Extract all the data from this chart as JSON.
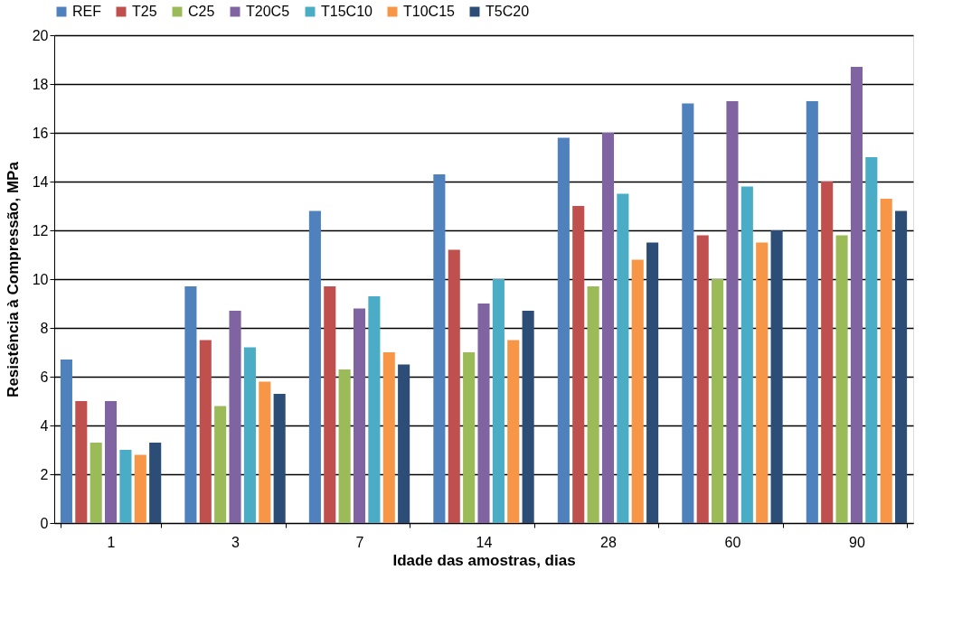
{
  "chart_data": {
    "type": "bar",
    "xlabel": "Idade das amostras, dias",
    "ylabel": "Resistência à Compressão, MPa",
    "categories": [
      "1",
      "3",
      "7",
      "14",
      "28",
      "60",
      "90"
    ],
    "series": [
      {
        "name": "REF",
        "color": "#4f81bd",
        "values": [
          6.7,
          9.7,
          12.8,
          14.3,
          15.8,
          17.2,
          17.3
        ]
      },
      {
        "name": "T25",
        "color": "#c0504d",
        "values": [
          5.0,
          7.5,
          9.7,
          11.2,
          13.0,
          11.8,
          14.0
        ]
      },
      {
        "name": "C25",
        "color": "#9bbb59",
        "values": [
          3.3,
          4.8,
          6.3,
          7.0,
          9.7,
          10.0,
          11.8
        ]
      },
      {
        "name": "T20C5",
        "color": "#8064a2",
        "values": [
          5.0,
          8.7,
          8.8,
          9.0,
          16.0,
          17.3,
          18.7
        ]
      },
      {
        "name": "T15C10",
        "color": "#4bacc6",
        "values": [
          3.0,
          7.2,
          9.3,
          10.0,
          13.5,
          13.8,
          15.0
        ]
      },
      {
        "name": "T10C15",
        "color": "#f79646",
        "values": [
          2.8,
          5.8,
          7.0,
          7.5,
          10.8,
          11.5,
          13.3
        ]
      },
      {
        "name": "T5C20",
        "color": "#2c4d75",
        "values": [
          3.3,
          5.3,
          6.5,
          8.7,
          11.5,
          12.0,
          12.8
        ]
      }
    ],
    "ylim": [
      0,
      20
    ],
    "yticks": [
      0,
      2,
      4,
      6,
      8,
      10,
      12,
      14,
      16,
      18,
      20
    ],
    "grid": "y",
    "legend": "top"
  }
}
